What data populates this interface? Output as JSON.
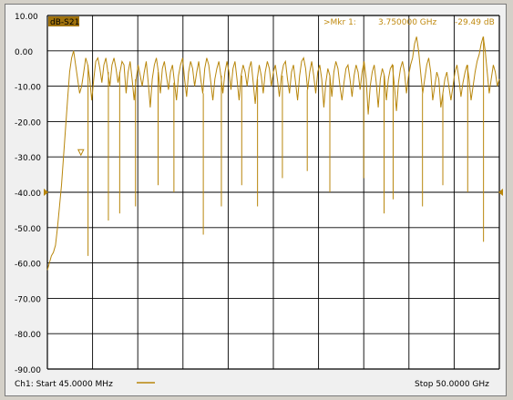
{
  "trace_tag": "dB-S21",
  "marker_label": ">Mkr  1:",
  "marker_freq": "3.750000 GHz",
  "marker_value": "-29.49 dB",
  "footer_start": "Ch1: Start  45.0000 MHz",
  "footer_stop": "Stop  50.0000 GHz",
  "colors": {
    "trace": "#b8860b",
    "grid": "#000000",
    "plot_bg": "#ffffff",
    "tag_bg": "#a0720c"
  },
  "chart_data": {
    "type": "line",
    "title": "",
    "xlabel": "",
    "ylabel": "",
    "x_range_ghz": [
      0.045,
      50.0
    ],
    "ylim": [
      -90,
      10
    ],
    "y_tick_labels": [
      "10.00",
      "0.00",
      "-10.00",
      "-20.00",
      "-30.00",
      "-40.00",
      "-50.00",
      "-60.00",
      "-70.00",
      "-80.00",
      "-90.00"
    ],
    "grid": true,
    "x_divisions": 10,
    "y_divisions": 10,
    "reference_level_db": -40,
    "marker": {
      "index": 1,
      "x_ghz": 3.75,
      "y_db": -29.49
    },
    "series": [
      {
        "values_db": [
          -62,
          -60,
          -58,
          -57,
          -55,
          -50,
          -44,
          -38,
          -30,
          -22,
          -14,
          -6,
          -2,
          0,
          -4,
          -8,
          -12,
          -10,
          -6,
          -2,
          -4,
          -8,
          -14,
          -8,
          -3,
          -2,
          -5,
          -9,
          -4,
          -2,
          -6,
          -10,
          -4,
          -2,
          -5,
          -9,
          -6,
          -3,
          -4,
          -12,
          -6,
          -3,
          -8,
          -14,
          -8,
          -4,
          -7,
          -10,
          -6,
          -3,
          -9,
          -16,
          -8,
          -4,
          -2,
          -6,
          -12,
          -5,
          -3,
          -7,
          -11,
          -6,
          -4,
          -9,
          -14,
          -7,
          -4,
          -2,
          -8,
          -13,
          -6,
          -3,
          -5,
          -10,
          -6,
          -3,
          -8,
          -12,
          -5,
          -2,
          -4,
          -9,
          -14,
          -8,
          -5,
          -3,
          -7,
          -12,
          -6,
          -3,
          -6,
          -11,
          -5,
          -3,
          -8,
          -14,
          -7,
          -4,
          -6,
          -10,
          -5,
          -3,
          -9,
          -15,
          -8,
          -4,
          -7,
          -12,
          -6,
          -3,
          -5,
          -10,
          -6,
          -4,
          -8,
          -13,
          -7,
          -4,
          -3,
          -8,
          -12,
          -6,
          -4,
          -9,
          -14,
          -7,
          -3,
          -2,
          -5,
          -11,
          -6,
          -3,
          -7,
          -12,
          -6,
          -4,
          -8,
          -16,
          -9,
          -5,
          -7,
          -13,
          -6,
          -3,
          -5,
          -10,
          -14,
          -9,
          -5,
          -4,
          -8,
          -13,
          -7,
          -4,
          -6,
          -11,
          -6,
          -3,
          -8,
          -18,
          -10,
          -6,
          -4,
          -9,
          -16,
          -8,
          -5,
          -7,
          -14,
          -8,
          -5,
          -4,
          -10,
          -17,
          -9,
          -5,
          -3,
          -6,
          -12,
          -7,
          -4,
          -2,
          2,
          4,
          0,
          -6,
          -12,
          -8,
          -4,
          -2,
          -6,
          -14,
          -10,
          -6,
          -8,
          -16,
          -12,
          -8,
          -6,
          -10,
          -14,
          -10,
          -6,
          -4,
          -8,
          -13,
          -9,
          -6,
          -4,
          -8,
          -14,
          -10,
          -6,
          -3,
          -1,
          2,
          4,
          0,
          -6,
          -12,
          -8,
          -4,
          -6,
          -10,
          -8
        ]
      }
    ],
    "spikes": [
      {
        "x_frac": 0.09,
        "y_db": -58
      },
      {
        "x_frac": 0.135,
        "y_db": -48
      },
      {
        "x_frac": 0.16,
        "y_db": -46
      },
      {
        "x_frac": 0.195,
        "y_db": -44
      },
      {
        "x_frac": 0.245,
        "y_db": -38
      },
      {
        "x_frac": 0.28,
        "y_db": -40
      },
      {
        "x_frac": 0.345,
        "y_db": -52
      },
      {
        "x_frac": 0.385,
        "y_db": -44
      },
      {
        "x_frac": 0.43,
        "y_db": -38
      },
      {
        "x_frac": 0.465,
        "y_db": -44
      },
      {
        "x_frac": 0.52,
        "y_db": -36
      },
      {
        "x_frac": 0.575,
        "y_db": -34
      },
      {
        "x_frac": 0.625,
        "y_db": -40
      },
      {
        "x_frac": 0.7,
        "y_db": -36
      },
      {
        "x_frac": 0.745,
        "y_db": -46
      },
      {
        "x_frac": 0.765,
        "y_db": -42
      },
      {
        "x_frac": 0.83,
        "y_db": -44
      },
      {
        "x_frac": 0.875,
        "y_db": -38
      },
      {
        "x_frac": 0.93,
        "y_db": -40
      },
      {
        "x_frac": 0.965,
        "y_db": -54
      }
    ]
  }
}
